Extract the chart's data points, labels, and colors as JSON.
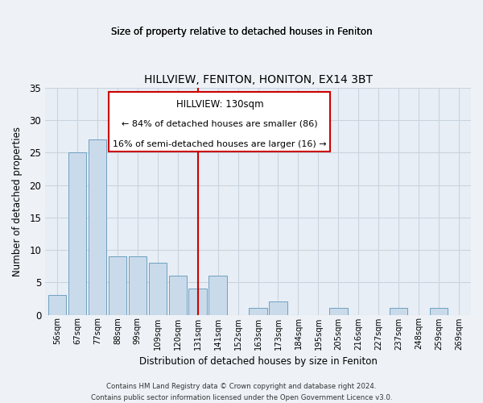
{
  "title": "HILLVIEW, FENITON, HONITON, EX14 3BT",
  "subtitle": "Size of property relative to detached houses in Feniton",
  "xlabel": "Distribution of detached houses by size in Feniton",
  "ylabel": "Number of detached properties",
  "bar_labels": [
    "56sqm",
    "67sqm",
    "77sqm",
    "88sqm",
    "99sqm",
    "109sqm",
    "120sqm",
    "131sqm",
    "141sqm",
    "152sqm",
    "163sqm",
    "173sqm",
    "184sqm",
    "195sqm",
    "205sqm",
    "216sqm",
    "227sqm",
    "237sqm",
    "248sqm",
    "259sqm",
    "269sqm"
  ],
  "bar_values": [
    3,
    25,
    27,
    9,
    9,
    8,
    6,
    4,
    6,
    0,
    1,
    2,
    0,
    0,
    1,
    0,
    0,
    1,
    0,
    1,
    0
  ],
  "bar_color": "#c9daea",
  "bar_edgecolor": "#6fa0c0",
  "vline_x_index": 7,
  "vline_color": "#cc0000",
  "ylim": [
    0,
    35
  ],
  "yticks": [
    0,
    5,
    10,
    15,
    20,
    25,
    30,
    35
  ],
  "annotation_title": "HILLVIEW: 130sqm",
  "annotation_line1": "← 84% of detached houses are smaller (86)",
  "annotation_line2": "16% of semi-detached houses are larger (16) →",
  "footer1": "Contains HM Land Registry data © Crown copyright and database right 2024.",
  "footer2": "Contains public sector information licensed under the Open Government Licence v3.0.",
  "fig_bg_color": "#eef2f7",
  "plot_bg_color": "#e8eef5",
  "grid_color": "#c8d4e0"
}
